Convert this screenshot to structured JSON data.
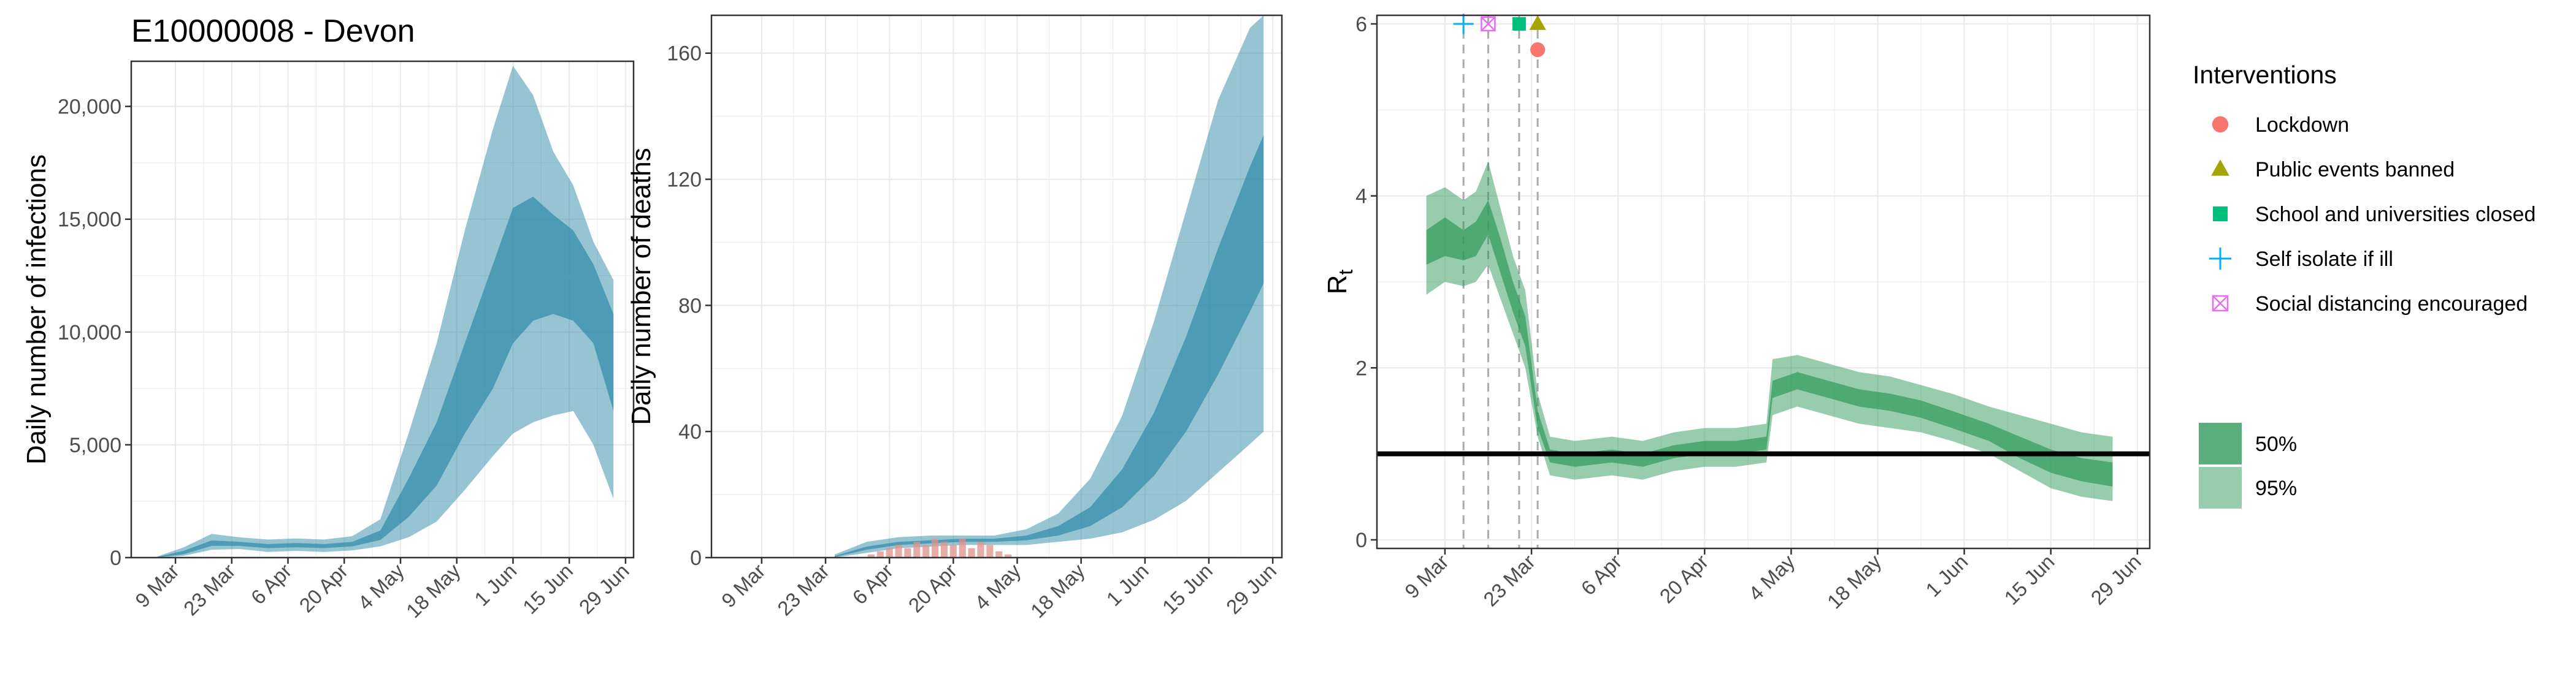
{
  "title": "E10000008 - Devon",
  "colors": {
    "infections": "#2e8aa8",
    "deaths_obs": "#e0908a",
    "rt": "#2f9a5a",
    "lockdown": "#f8766d",
    "public_events": "#9a9a00",
    "school": "#00bf7d",
    "self_isolate": "#00bfc4",
    "social_distancing": "#e76bf3",
    "grid": "#ebebeb",
    "frame": "#333333"
  },
  "legend": {
    "title": "Interventions",
    "items": [
      {
        "label": "Lockdown",
        "symbol": "circle",
        "color": "#f8766d"
      },
      {
        "label": "Public events banned",
        "symbol": "triangle",
        "color": "#a3a500"
      },
      {
        "label": "School and universities closed",
        "symbol": "square",
        "color": "#00bf7d"
      },
      {
        "label": "Self isolate if ill",
        "symbol": "plus",
        "color": "#00b0f6"
      },
      {
        "label": "Social distancing encouraged",
        "symbol": "boxx",
        "color": "#e76bf3"
      }
    ],
    "ci": [
      {
        "label": "50%"
      },
      {
        "label": "95%"
      }
    ]
  },
  "chart_data": [
    {
      "type": "area",
      "ylabel": "Daily number of infections",
      "xlabel": "",
      "x_tick_labels": [
        "9 Mar",
        "23 Mar",
        "6 Apr",
        "20 Apr",
        "4 May",
        "18 May",
        "1 Jun",
        "15 Jun",
        "29 Jun"
      ],
      "x_ticks": [
        "2020-03-09",
        "2020-03-23",
        "2020-04-06",
        "2020-04-20",
        "2020-05-04",
        "2020-05-18",
        "2020-06-01",
        "2020-06-15",
        "2020-06-29"
      ],
      "xlim": [
        "2020-02-27",
        "2020-07-01"
      ],
      "y_ticks": [
        0,
        5000,
        10000,
        15000,
        20000
      ],
      "y_tick_labels": [
        "0",
        "5,000",
        "10,000",
        "15,000",
        "20,000"
      ],
      "ylim": [
        0,
        22000
      ],
      "grid": true,
      "series": [
        {
          "kind": "ci_band",
          "x": [
            "2020-03-04",
            "2020-03-11",
            "2020-03-18",
            "2020-03-25",
            "2020-04-01",
            "2020-04-08",
            "2020-04-15",
            "2020-04-22",
            "2020-04-29",
            "2020-05-06",
            "2020-05-13",
            "2020-05-20",
            "2020-05-27",
            "2020-06-01",
            "2020-06-06",
            "2020-06-11",
            "2020-06-16",
            "2020-06-21",
            "2020-06-26"
          ],
          "lo95": [
            0,
            80,
            350,
            380,
            250,
            300,
            250,
            320,
            500,
            900,
            1600,
            3000,
            4500,
            5500,
            6000,
            6300,
            6500,
            5000,
            2600
          ],
          "lo50": [
            0,
            150,
            520,
            520,
            420,
            460,
            420,
            500,
            780,
            1800,
            3200,
            5500,
            7500,
            9500,
            10500,
            10800,
            10500,
            9500,
            6500
          ],
          "hi50": [
            10,
            300,
            760,
            700,
            600,
            650,
            600,
            700,
            1200,
            3500,
            6000,
            9500,
            13000,
            15500,
            16000,
            15200,
            14500,
            13000,
            10800
          ],
          "hi95": [
            20,
            450,
            1050,
            900,
            800,
            850,
            800,
            950,
            1700,
            5500,
            9500,
            14500,
            19000,
            21800,
            20500,
            18000,
            16500,
            14000,
            12300
          ]
        }
      ]
    },
    {
      "type": "area",
      "ylabel": "Daily number of deaths",
      "xlabel": "",
      "x_tick_labels": [
        "9 Mar",
        "23 Mar",
        "6 Apr",
        "20 Apr",
        "4 May",
        "18 May",
        "1 Jun",
        "15 Jun",
        "29 Jun"
      ],
      "x_ticks": [
        "2020-03-09",
        "2020-03-23",
        "2020-04-06",
        "2020-04-20",
        "2020-05-04",
        "2020-05-18",
        "2020-06-01",
        "2020-06-15",
        "2020-06-29"
      ],
      "xlim": [
        "2020-02-27",
        "2020-07-01"
      ],
      "y_ticks": [
        0,
        40,
        80,
        120,
        160
      ],
      "y_tick_labels": [
        "0",
        "40",
        "80",
        "120",
        "160"
      ],
      "ylim": [
        0,
        172
      ],
      "grid": true,
      "series": [
        {
          "kind": "ci_band",
          "x": [
            "2020-03-25",
            "2020-04-01",
            "2020-04-08",
            "2020-04-15",
            "2020-04-22",
            "2020-04-29",
            "2020-05-06",
            "2020-05-13",
            "2020-05-20",
            "2020-05-27",
            "2020-06-03",
            "2020-06-10",
            "2020-06-17",
            "2020-06-24",
            "2020-06-27"
          ],
          "lo95": [
            0,
            1.5,
            3,
            3.5,
            4,
            4,
            4,
            5,
            6,
            8,
            12,
            18,
            27,
            36,
            40
          ],
          "lo50": [
            0.2,
            2.5,
            4,
            4.5,
            5,
            5,
            5.5,
            7,
            10,
            16,
            26,
            40,
            58,
            78,
            87
          ],
          "hi50": [
            0.5,
            3.5,
            5,
            5.5,
            6,
            6,
            7,
            10,
            16,
            28,
            46,
            70,
            98,
            124,
            134
          ],
          "hi95": [
            1,
            5,
            6.5,
            7,
            7,
            7,
            9,
            14,
            25,
            45,
            75,
            110,
            145,
            168,
            172
          ]
        },
        {
          "kind": "observed_bars",
          "x": [
            "2020-04-02",
            "2020-04-04",
            "2020-04-06",
            "2020-04-08",
            "2020-04-10",
            "2020-04-12",
            "2020-04-14",
            "2020-04-16",
            "2020-04-18",
            "2020-04-20",
            "2020-04-22",
            "2020-04-24",
            "2020-04-26",
            "2020-04-28",
            "2020-04-30",
            "2020-05-02"
          ],
          "values": [
            1,
            2,
            3,
            4,
            3,
            5,
            4,
            6,
            5,
            4,
            6,
            3,
            5,
            4,
            2,
            1
          ]
        }
      ]
    },
    {
      "type": "area",
      "ylabel": "R",
      "ylabel_subscript": "t",
      "xlabel": "",
      "x_tick_labels": [
        "9 Mar",
        "23 Mar",
        "6 Apr",
        "20 Apr",
        "4 May",
        "18 May",
        "1 Jun",
        "15 Jun",
        "29 Jun"
      ],
      "x_ticks": [
        "2020-03-09",
        "2020-03-23",
        "2020-04-06",
        "2020-04-20",
        "2020-05-04",
        "2020-05-18",
        "2020-06-01",
        "2020-06-15",
        "2020-06-29"
      ],
      "xlim": [
        "2020-02-27",
        "2020-07-01"
      ],
      "y_ticks": [
        0,
        2,
        4,
        6
      ],
      "y_tick_labels": [
        "0",
        "2",
        "4",
        "6"
      ],
      "ylim": [
        -0.1,
        6.1
      ],
      "grid": true,
      "reference_line": 1,
      "intervention_dates": [
        "2020-03-12",
        "2020-03-16",
        "2020-03-21",
        "2020-03-24"
      ],
      "intervention_markers": [
        {
          "date": "2020-03-12",
          "y": 6.0,
          "symbol": "plus",
          "color": "#00b0f6"
        },
        {
          "date": "2020-03-16",
          "y": 6.0,
          "symbol": "boxx",
          "color": "#e76bf3"
        },
        {
          "date": "2020-03-21",
          "y": 6.0,
          "symbol": "square",
          "color": "#00bf7d"
        },
        {
          "date": "2020-03-24",
          "y": 6.0,
          "symbol": "triangle",
          "color": "#a3a500"
        },
        {
          "date": "2020-03-24",
          "y": 5.7,
          "symbol": "circle",
          "color": "#f8766d"
        }
      ],
      "series": [
        {
          "kind": "ci_band",
          "x": [
            "2020-03-06",
            "2020-03-09",
            "2020-03-12",
            "2020-03-14",
            "2020-03-16",
            "2020-03-18",
            "2020-03-20",
            "2020-03-22",
            "2020-03-24",
            "2020-03-26",
            "2020-03-30",
            "2020-04-05",
            "2020-04-10",
            "2020-04-15",
            "2020-04-20",
            "2020-04-25",
            "2020-04-30",
            "2020-05-01",
            "2020-05-05",
            "2020-05-10",
            "2020-05-15",
            "2020-05-20",
            "2020-05-25",
            "2020-05-30",
            "2020-06-05",
            "2020-06-10",
            "2020-06-15",
            "2020-06-20",
            "2020-06-25"
          ],
          "lo95": [
            2.85,
            3.0,
            2.95,
            3.0,
            3.2,
            2.8,
            2.4,
            2.0,
            1.2,
            0.75,
            0.7,
            0.75,
            0.7,
            0.8,
            0.85,
            0.85,
            0.9,
            1.45,
            1.55,
            1.45,
            1.35,
            1.3,
            1.25,
            1.15,
            1.0,
            0.8,
            0.6,
            0.5,
            0.45
          ],
          "lo50": [
            3.2,
            3.3,
            3.25,
            3.3,
            3.55,
            3.1,
            2.65,
            2.25,
            1.3,
            0.9,
            0.85,
            0.9,
            0.85,
            0.95,
            1.0,
            1.0,
            1.05,
            1.65,
            1.75,
            1.65,
            1.55,
            1.5,
            1.42,
            1.3,
            1.15,
            0.95,
            0.78,
            0.68,
            0.62
          ],
          "hi50": [
            3.6,
            3.75,
            3.6,
            3.7,
            3.95,
            3.5,
            3.0,
            2.6,
            1.5,
            1.05,
            1.0,
            1.05,
            1.0,
            1.1,
            1.15,
            1.15,
            1.2,
            1.85,
            1.95,
            1.85,
            1.75,
            1.7,
            1.62,
            1.5,
            1.35,
            1.2,
            1.05,
            0.95,
            0.9
          ],
          "hi95": [
            4.0,
            4.1,
            3.95,
            4.05,
            4.4,
            3.85,
            3.3,
            2.9,
            1.7,
            1.2,
            1.15,
            1.2,
            1.15,
            1.25,
            1.3,
            1.3,
            1.35,
            2.1,
            2.15,
            2.05,
            1.95,
            1.9,
            1.8,
            1.7,
            1.55,
            1.45,
            1.35,
            1.25,
            1.2
          ]
        }
      ]
    }
  ]
}
